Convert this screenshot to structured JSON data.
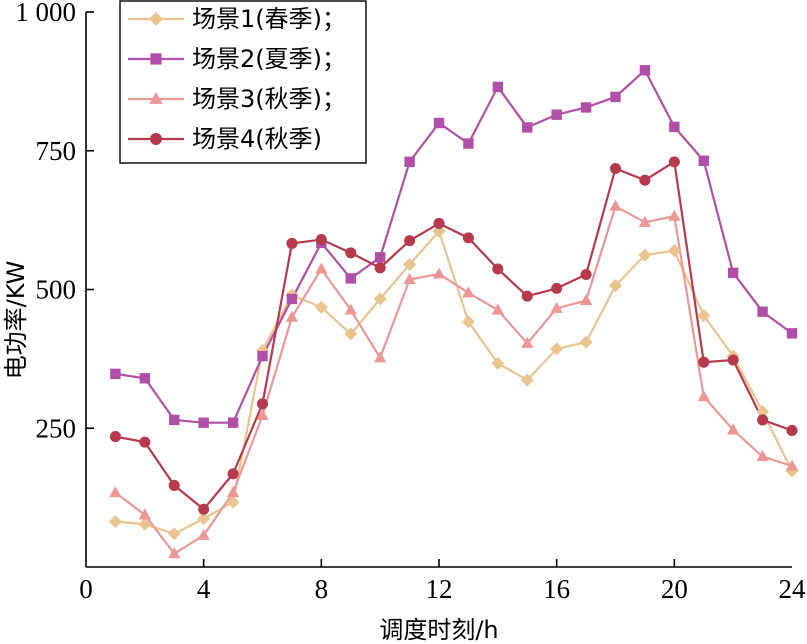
{
  "chart_data": {
    "type": "line",
    "title": "",
    "xlabel": "调度时刻/h",
    "ylabel": "电功率/KW",
    "xlim": [
      0,
      24
    ],
    "ylim": [
      0,
      1000
    ],
    "x_ticks": [
      0,
      4,
      8,
      12,
      16,
      20,
      24
    ],
    "y_ticks": [
      250,
      500,
      750,
      1000
    ],
    "x_tick_labels": [
      "0",
      "4",
      "8",
      "12",
      "16",
      "20",
      "24"
    ],
    "y_tick_labels": [
      "250",
      "500",
      "750",
      "1 000"
    ],
    "grid": false,
    "legend_position": "top-left",
    "x": [
      1,
      2,
      3,
      4,
      5,
      6,
      7,
      8,
      9,
      10,
      11,
      12,
      13,
      14,
      15,
      16,
      17,
      18,
      19,
      20,
      21,
      22,
      23,
      24
    ],
    "series": [
      {
        "name": "场景1(春季)；",
        "color": "#e9c48e",
        "marker": "diamond",
        "values": [
          82,
          77,
          60,
          87,
          117,
          390,
          490,
          468,
          420,
          483,
          545,
          605,
          442,
          367,
          337,
          393,
          405,
          507,
          562,
          570,
          453,
          380,
          280,
          173
        ]
      },
      {
        "name": "场景2(夏季)；",
        "color": "#b14fa8",
        "marker": "square",
        "values": [
          348,
          340,
          265,
          260,
          260,
          380,
          483,
          584,
          520,
          558,
          730,
          800,
          763,
          865,
          792,
          815,
          828,
          847,
          895,
          793,
          732,
          530,
          460,
          421
        ]
      },
      {
        "name": "场景3(秋季)；",
        "color": "#ec9795",
        "marker": "triangle",
        "values": [
          134,
          94,
          24,
          57,
          134,
          273,
          450,
          537,
          463,
          377,
          518,
          528,
          494,
          463,
          403,
          466,
          480,
          650,
          621,
          632,
          307,
          247,
          199,
          182
        ]
      },
      {
        "name": "场景4(秋季)",
        "color": "#b7394c",
        "marker": "circle",
        "values": [
          235,
          225,
          147,
          104,
          168,
          294,
          583,
          590,
          566,
          539,
          588,
          619,
          593,
          537,
          488,
          502,
          527,
          718,
          697,
          730,
          369,
          373,
          265,
          246
        ]
      }
    ]
  }
}
